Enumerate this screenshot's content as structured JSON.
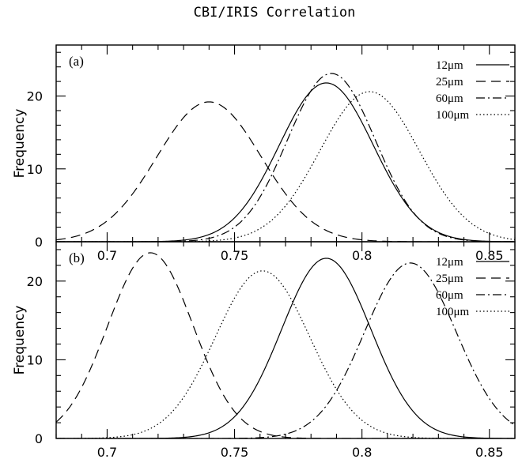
{
  "chart_data": {
    "type": "line",
    "title": "CBI/IRIS Correlation",
    "line_styles": {
      "12μm": "solid",
      "25μm": "dashed",
      "60μm": "dash-dot",
      "100μm": "dotted"
    },
    "panels": [
      {
        "label": "(a)",
        "ylabel": "Frequency",
        "xlim": [
          0.68,
          0.86
        ],
        "ylim": [
          0,
          27
        ],
        "xticks": [
          "0.7",
          "0.75",
          "0.8",
          "0.85"
        ],
        "yticks": [
          "0",
          "10",
          "20"
        ],
        "legend_position": "top-right",
        "series": [
          {
            "name": "12μm",
            "style": "solid",
            "mean": 0.786,
            "sigma": 0.0185,
            "peak": 21.8
          },
          {
            "name": "25μm",
            "style": "dashed",
            "mean": 0.74,
            "sigma": 0.0205,
            "peak": 19.2
          },
          {
            "name": "60μm",
            "style": "dash-dot",
            "mean": 0.788,
            "sigma": 0.0172,
            "peak": 23.1
          },
          {
            "name": "100μm",
            "style": "dotted",
            "mean": 0.803,
            "sigma": 0.0195,
            "peak": 20.6
          }
        ]
      },
      {
        "label": "(b)",
        "ylabel": "Frequency",
        "xlim": [
          0.68,
          0.86
        ],
        "ylim": [
          0,
          25
        ],
        "xticks": [
          "0.7",
          "0.75",
          "0.8",
          "0.85"
        ],
        "yticks": [
          "0",
          "10",
          "20"
        ],
        "legend_position": "top-right",
        "series": [
          {
            "name": "12μm",
            "style": "solid",
            "mean": 0.786,
            "sigma": 0.0175,
            "peak": 22.9
          },
          {
            "name": "25μm",
            "style": "dashed",
            "mean": 0.717,
            "sigma": 0.0168,
            "peak": 23.6
          },
          {
            "name": "60μm",
            "style": "dash-dot",
            "mean": 0.819,
            "sigma": 0.018,
            "peak": 22.3
          },
          {
            "name": "100μm",
            "style": "dotted",
            "mean": 0.761,
            "sigma": 0.0185,
            "peak": 21.3
          }
        ]
      }
    ]
  }
}
